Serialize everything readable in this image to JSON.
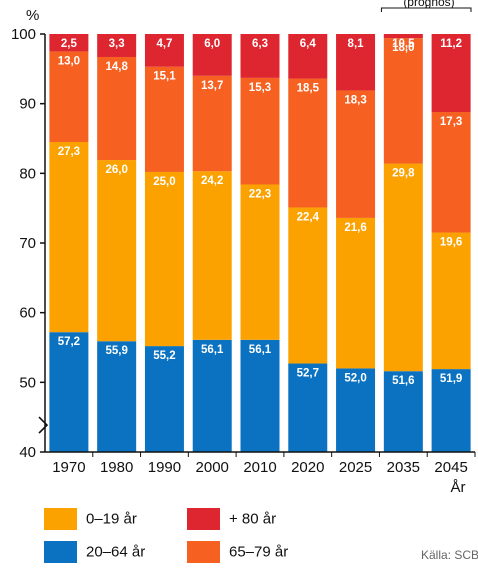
{
  "chart_data": {
    "type": "bar",
    "stacked": true,
    "title": "",
    "ylabel": "%",
    "xlabel": "År",
    "ylim": [
      40,
      100
    ],
    "y_axis_break": true,
    "yticks": [
      40,
      50,
      60,
      70,
      80,
      90,
      100
    ],
    "projection_label": "(prognos)",
    "categories": [
      "1970",
      "1980",
      "1990",
      "2000",
      "2010",
      "2020",
      "2025",
      "2035",
      "2045"
    ],
    "series": [
      {
        "name": "20–64 år",
        "color": "#0a72c0",
        "values": [
          57.2,
          55.9,
          55.2,
          56.1,
          56.1,
          52.7,
          52.0,
          51.6,
          51.9
        ]
      },
      {
        "name": "0–19 år",
        "color": "#fba200",
        "values": [
          27.3,
          26.0,
          25.0,
          24.2,
          22.3,
          22.4,
          21.6,
          29.8,
          19.6
        ]
      },
      {
        "name": "65–79 år",
        "color": "#f66020",
        "values": [
          13.0,
          14.8,
          15.1,
          13.7,
          15.3,
          18.5,
          18.3,
          18.0,
          17.3
        ]
      },
      {
        "name": "+ 80 år",
        "color": "#de2630",
        "values": [
          2.5,
          3.3,
          4.7,
          6.0,
          6.3,
          6.4,
          8.1,
          10.5,
          11.2
        ]
      }
    ]
  },
  "legend": {
    "items": [
      {
        "label": "0–19 år",
        "color": "#fba200"
      },
      {
        "label": "+ 80 år",
        "color": "#de2630"
      },
      {
        "label": "20–64 år",
        "color": "#0a72c0"
      },
      {
        "label": "65–79 år",
        "color": "#f66020"
      }
    ]
  },
  "source": "Källa: SCB"
}
